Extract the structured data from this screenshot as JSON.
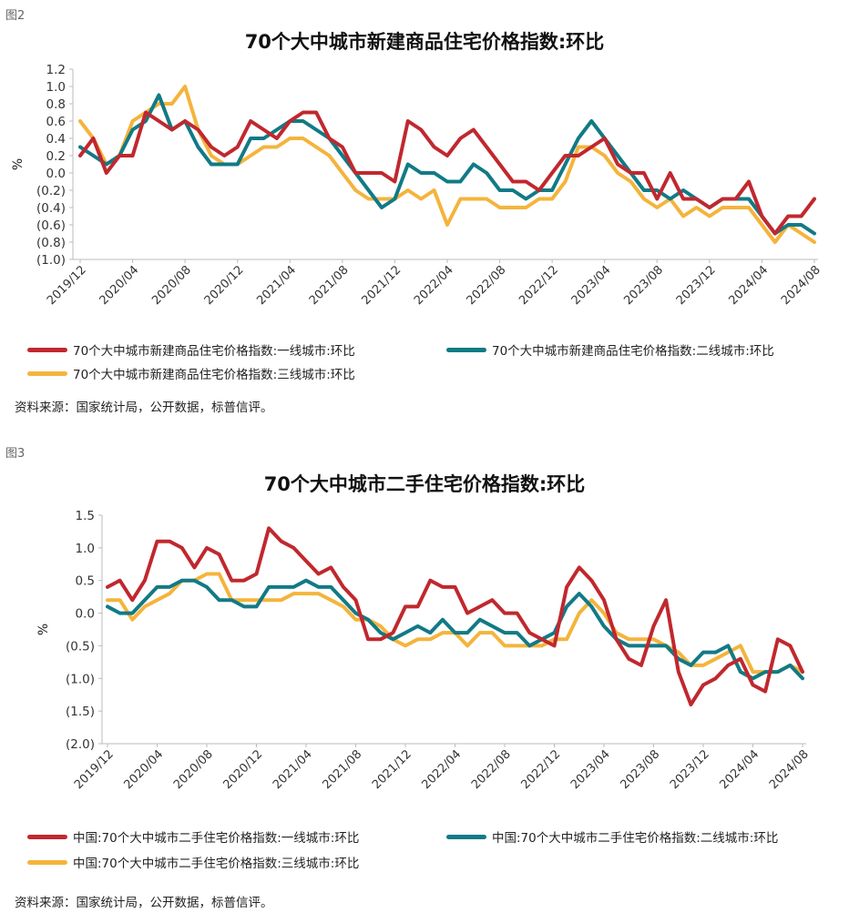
{
  "colors": {
    "tier1": "#c0282e",
    "tier2": "#117a86",
    "tier3": "#f4b43c",
    "axis": "#bbbbbb",
    "tick": "#333333"
  },
  "charts": [
    {
      "figure_label": "图2",
      "source": "资料来源：国家统计局，公开数据，标普信评。",
      "chart_data": {
        "type": "line",
        "title": "70个大中城市新建商品住宅价格指数:环比",
        "ylabel": "%",
        "ylim": [
          -1.0,
          1.2
        ],
        "yticks": [
          1.2,
          1.0,
          0.8,
          0.6,
          0.4,
          0.2,
          0.0,
          -0.2,
          -0.4,
          -0.6,
          -0.8,
          -1.0
        ],
        "ytick_labels": [
          "1.2",
          "1.0",
          "0.8",
          "0.6",
          "0.4",
          "0.2",
          "0.0",
          "(0.2)",
          "(0.4)",
          "(0.6)",
          "(0.8)",
          "(1.0)"
        ],
        "x_tick_labels": [
          "2019/12",
          "2020/04",
          "2020/08",
          "2020/12",
          "2021/04",
          "2021/08",
          "2021/12",
          "2022/04",
          "2022/08",
          "2022/12",
          "2023/04",
          "2023/08",
          "2023/12",
          "2024/04",
          "2024/08"
        ],
        "x_tick_every": 4,
        "legend_position": "bottom",
        "series": [
          {
            "name": "70个大中城市新建商品住宅价格指数:一线城市:环比",
            "color_key": "tier1",
            "values": [
              0.2,
              0.4,
              0.0,
              0.2,
              0.2,
              0.7,
              0.6,
              0.5,
              0.6,
              0.5,
              0.3,
              0.2,
              0.3,
              0.6,
              0.5,
              0.4,
              0.6,
              0.7,
              0.7,
              0.4,
              0.3,
              0.0,
              0.0,
              0.0,
              -0.1,
              0.6,
              0.5,
              0.3,
              0.2,
              0.4,
              0.5,
              0.3,
              0.1,
              -0.1,
              -0.1,
              -0.2,
              0.0,
              0.2,
              0.2,
              0.3,
              0.4,
              0.1,
              0.0,
              0.0,
              -0.3,
              0.0,
              -0.3,
              -0.3,
              -0.4,
              -0.3,
              -0.3,
              -0.1,
              -0.5,
              -0.7,
              -0.5,
              -0.5,
              -0.3
            ]
          },
          {
            "name": "70个大中城市新建商品住宅价格指数:二线城市:环比",
            "color_key": "tier2",
            "values": [
              0.3,
              0.2,
              0.1,
              0.2,
              0.5,
              0.6,
              0.9,
              0.5,
              0.6,
              0.3,
              0.1,
              0.1,
              0.1,
              0.4,
              0.4,
              0.5,
              0.6,
              0.6,
              0.5,
              0.4,
              0.2,
              0.0,
              -0.2,
              -0.4,
              -0.3,
              0.1,
              0.0,
              0.0,
              -0.1,
              -0.1,
              0.1,
              0.0,
              -0.2,
              -0.2,
              -0.3,
              -0.2,
              -0.2,
              0.1,
              0.4,
              0.6,
              0.4,
              0.2,
              0.0,
              -0.2,
              -0.2,
              -0.3,
              -0.2,
              -0.3,
              -0.4,
              -0.3,
              -0.3,
              -0.3,
              -0.5,
              -0.7,
              -0.6,
              -0.6,
              -0.7
            ]
          },
          {
            "name": "70个大中城市新建商品住宅价格指数:三线城市:环比",
            "color_key": "tier3",
            "values": [
              0.6,
              0.4,
              0.1,
              0.2,
              0.6,
              0.7,
              0.8,
              0.8,
              1.0,
              0.5,
              0.2,
              0.1,
              0.1,
              0.2,
              0.3,
              0.3,
              0.4,
              0.4,
              0.3,
              0.2,
              0.0,
              -0.2,
              -0.3,
              -0.3,
              -0.3,
              -0.2,
              -0.3,
              -0.2,
              -0.6,
              -0.3,
              -0.3,
              -0.3,
              -0.4,
              -0.4,
              -0.4,
              -0.3,
              -0.3,
              -0.1,
              0.3,
              0.3,
              0.2,
              0.0,
              -0.1,
              -0.3,
              -0.4,
              -0.3,
              -0.5,
              -0.4,
              -0.5,
              -0.4,
              -0.4,
              -0.4,
              -0.6,
              -0.8,
              -0.6,
              -0.7,
              -0.8
            ]
          }
        ]
      }
    },
    {
      "figure_label": "图3",
      "source": "资料来源：国家统计局，公开数据，标普信评。",
      "chart_data": {
        "type": "line",
        "title": "70个大中城市二手住宅价格指数:环比",
        "ylabel": "%",
        "ylim": [
          -2.0,
          1.5
        ],
        "yticks": [
          1.5,
          1.0,
          0.5,
          0.0,
          -0.5,
          -1.0,
          -1.5,
          -2.0
        ],
        "ytick_labels": [
          "1.5",
          "1.0",
          "0.5",
          "0.0",
          "(0.5)",
          "(1.0)",
          "(1.5)",
          "(2.0)"
        ],
        "x_tick_labels": [
          "2019/12",
          "2020/04",
          "2020/08",
          "2020/12",
          "2021/04",
          "2021/08",
          "2021/12",
          "2022/04",
          "2022/08",
          "2022/12",
          "2023/04",
          "2023/08",
          "2023/12",
          "2024/04",
          "2024/08"
        ],
        "x_tick_every": 4,
        "legend_position": "bottom",
        "series": [
          {
            "name": "中国:70个大中城市二手住宅价格指数:一线城市:环比",
            "color_key": "tier1",
            "values": [
              0.4,
              0.5,
              0.2,
              0.5,
              1.1,
              1.1,
              1.0,
              0.7,
              1.0,
              0.9,
              0.5,
              0.5,
              0.6,
              1.3,
              1.1,
              1.0,
              0.8,
              0.6,
              0.7,
              0.4,
              0.2,
              -0.4,
              -0.4,
              -0.3,
              0.1,
              0.1,
              0.5,
              0.4,
              0.4,
              0.0,
              0.1,
              0.2,
              0.0,
              0.0,
              -0.3,
              -0.4,
              -0.5,
              0.4,
              0.7,
              0.5,
              0.2,
              -0.4,
              -0.7,
              -0.8,
              -0.2,
              0.2,
              -0.9,
              -1.4,
              -1.1,
              -1.0,
              -0.8,
              -0.7,
              -1.1,
              -1.2,
              -0.4,
              -0.5,
              -0.9
            ]
          },
          {
            "name": "中国:70个大中城市二手住宅价格指数:二线城市:环比",
            "color_key": "tier2",
            "values": [
              0.1,
              0.0,
              0.0,
              0.2,
              0.4,
              0.4,
              0.5,
              0.5,
              0.4,
              0.2,
              0.2,
              0.1,
              0.1,
              0.4,
              0.4,
              0.4,
              0.5,
              0.4,
              0.4,
              0.2,
              0.0,
              -0.1,
              -0.3,
              -0.4,
              -0.3,
              -0.2,
              -0.3,
              -0.1,
              -0.3,
              -0.3,
              -0.1,
              -0.2,
              -0.3,
              -0.3,
              -0.5,
              -0.4,
              -0.3,
              0.1,
              0.3,
              0.1,
              -0.2,
              -0.4,
              -0.5,
              -0.5,
              -0.5,
              -0.5,
              -0.7,
              -0.8,
              -0.6,
              -0.6,
              -0.5,
              -0.9,
              -1.0,
              -0.9,
              -0.9,
              -0.8,
              -1.0
            ]
          },
          {
            "name": "中国:70个大中城市二手住宅价格指数:三线城市:环比",
            "color_key": "tier3",
            "values": [
              0.2,
              0.2,
              -0.1,
              0.1,
              0.2,
              0.3,
              0.5,
              0.5,
              0.6,
              0.6,
              0.2,
              0.2,
              0.2,
              0.2,
              0.2,
              0.3,
              0.3,
              0.3,
              0.2,
              0.1,
              -0.1,
              -0.1,
              -0.2,
              -0.4,
              -0.5,
              -0.4,
              -0.4,
              -0.3,
              -0.3,
              -0.5,
              -0.3,
              -0.3,
              -0.5,
              -0.5,
              -0.5,
              -0.5,
              -0.4,
              -0.4,
              0.0,
              0.2,
              0.0,
              -0.3,
              -0.4,
              -0.4,
              -0.4,
              -0.5,
              -0.6,
              -0.8,
              -0.8,
              -0.7,
              -0.6,
              -0.5,
              -0.9,
              -0.9,
              -0.9,
              -0.8,
              -0.9
            ]
          }
        ]
      }
    }
  ]
}
